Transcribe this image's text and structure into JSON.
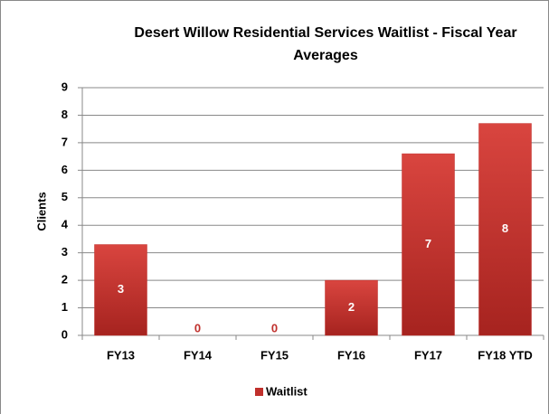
{
  "chart_data": {
    "type": "bar",
    "title": "Desert Willow Residential Services Waitlist - Fiscal Year Averages",
    "y_label": "Clients",
    "categories": [
      "FY13",
      "FY14",
      "FY15",
      "FY16",
      "FY17",
      "FY18 YTD"
    ],
    "series": [
      {
        "name": "Waitlist",
        "color": "#c0302c",
        "values": [
          3.3,
          0,
          0,
          2,
          6.6,
          7.7
        ],
        "value_labels": [
          "3",
          "0",
          "0",
          "2",
          "7",
          "8"
        ]
      }
    ],
    "ylim": [
      0,
      9
    ],
    "yticks": [
      0,
      1,
      2,
      3,
      4,
      5,
      6,
      7,
      8,
      9
    ],
    "grid": true,
    "legend": "bottom"
  }
}
